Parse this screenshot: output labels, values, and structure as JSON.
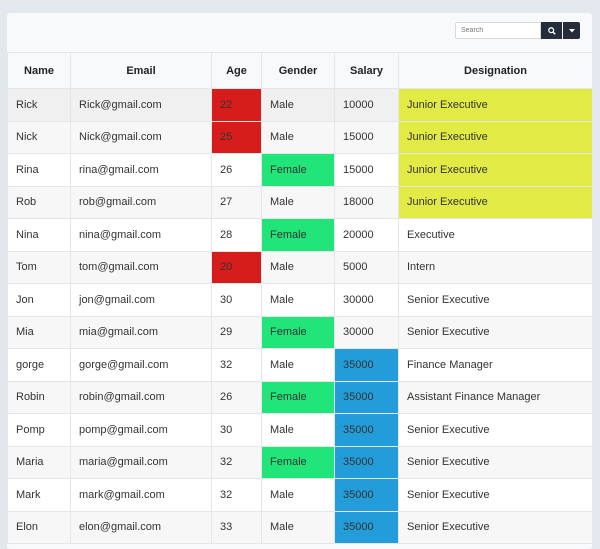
{
  "search": {
    "placeholder": "Search",
    "search_icon": "search-icon",
    "dropdown_icon": "caret-down-icon"
  },
  "colors": {
    "red": "#d71c1c",
    "green": "#22e57a",
    "blue": "#239dd9",
    "yellow": "#e2ea45"
  },
  "table": {
    "headers": [
      "Name",
      "Email",
      "Age",
      "Gender",
      "Salary",
      "Designation"
    ],
    "rows": [
      {
        "name": "Rick",
        "email": "Rick@gmail.com",
        "age": "22",
        "gender": "Male",
        "salary": "10000",
        "designation": "Junior Executive"
      },
      {
        "name": "Nick",
        "email": "Nick@gmail.com",
        "age": "25",
        "gender": "Male",
        "salary": "15000",
        "designation": "Junior Executive"
      },
      {
        "name": "Rina",
        "email": "rina@gmail.com",
        "age": "26",
        "gender": "Female",
        "salary": "15000",
        "designation": "Junior Executive"
      },
      {
        "name": "Rob",
        "email": "rob@gmail.com",
        "age": "27",
        "gender": "Male",
        "salary": "18000",
        "designation": "Junior Executive"
      },
      {
        "name": "Nina",
        "email": "nina@gmail.com",
        "age": "28",
        "gender": "Female",
        "salary": "20000",
        "designation": "Executive"
      },
      {
        "name": "Tom",
        "email": "tom@gmail.com",
        "age": "20",
        "gender": "Male",
        "salary": "5000",
        "designation": "Intern"
      },
      {
        "name": "Jon",
        "email": "jon@gmail.com",
        "age": "30",
        "gender": "Male",
        "salary": "30000",
        "designation": "Senior Executive"
      },
      {
        "name": "Mia",
        "email": "mia@gmail.com",
        "age": "29",
        "gender": "Female",
        "salary": "30000",
        "designation": "Senior Executive"
      },
      {
        "name": "gorge",
        "email": "gorge@gmail.com",
        "age": "32",
        "gender": "Male",
        "salary": "35000",
        "designation": "Finance Manager"
      },
      {
        "name": "Robin",
        "email": "robin@gmail.com",
        "age": "26",
        "gender": "Female",
        "salary": "35000",
        "designation": "Assistant Finance Manager"
      },
      {
        "name": "Pomp",
        "email": "pomp@gmail.com",
        "age": "30",
        "gender": "Male",
        "salary": "35000",
        "designation": "Senior Executive"
      },
      {
        "name": "Maria",
        "email": "maria@gmail.com",
        "age": "32",
        "gender": "Female",
        "salary": "35000",
        "designation": "Senior Executive"
      },
      {
        "name": "Mark",
        "email": "mark@gmail.com",
        "age": "32",
        "gender": "Male",
        "salary": "35000",
        "designation": "Senior Executive"
      },
      {
        "name": "Elon",
        "email": "elon@gmail.com",
        "age": "33",
        "gender": "Male",
        "salary": "35000",
        "designation": "Senior Executive"
      }
    ]
  }
}
